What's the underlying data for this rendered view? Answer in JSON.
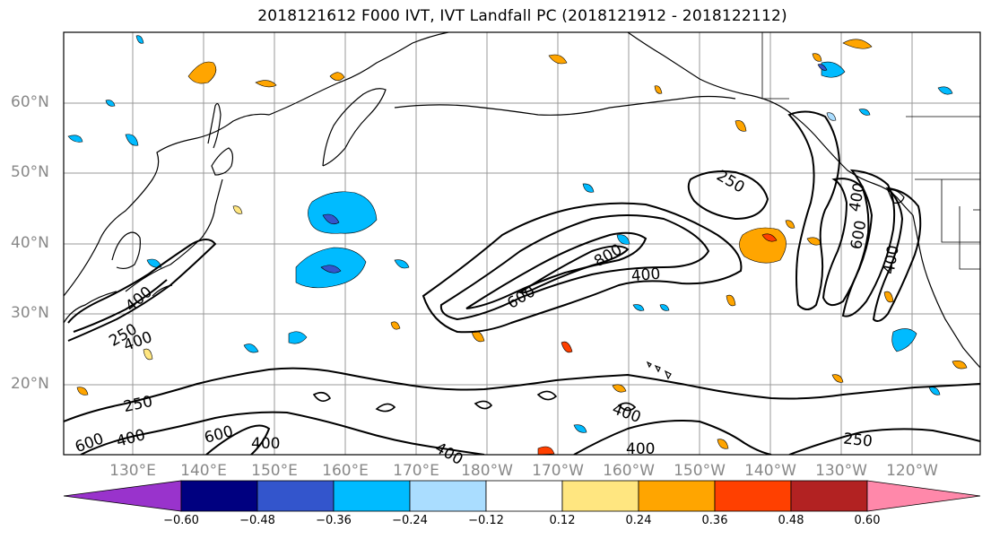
{
  "title": "2018121612 F000 IVT, IVT Landfall PC (2018121912 - 2018122112)",
  "lat_ticks": [
    "60°N",
    "50°N",
    "40°N",
    "30°N",
    "20°N"
  ],
  "lon_ticks": [
    "130°E",
    "140°E",
    "150°E",
    "160°E",
    "170°E",
    "180°W",
    "170°W",
    "160°W",
    "150°W",
    "140°W",
    "130°W",
    "120°W"
  ],
  "colorbar": {
    "ticks": [
      "−0.60",
      "−0.48",
      "−0.36",
      "−0.24",
      "−0.12",
      "0.12",
      "0.24",
      "0.36",
      "0.48",
      "0.60"
    ],
    "colors": [
      "#9933cc",
      "#000080",
      "#3355cc",
      "#00bbff",
      "#aaddff",
      "#ffffff",
      "#ffe680",
      "#ffa500",
      "#ff4000",
      "#b22222",
      "#ff88aa"
    ]
  },
  "contour_labels": {
    "c1": "250",
    "c2": "400",
    "c3": "600",
    "c4": "800",
    "c5": "400",
    "c6": "600",
    "c7": "400",
    "c8": "250",
    "c9": "250",
    "c10": "400",
    "c11": "400",
    "c12": "600",
    "c13": "400",
    "c14": "400",
    "c15": "400",
    "c16": "250",
    "c17": "400",
    "c18": "600",
    "c19": "400"
  }
}
